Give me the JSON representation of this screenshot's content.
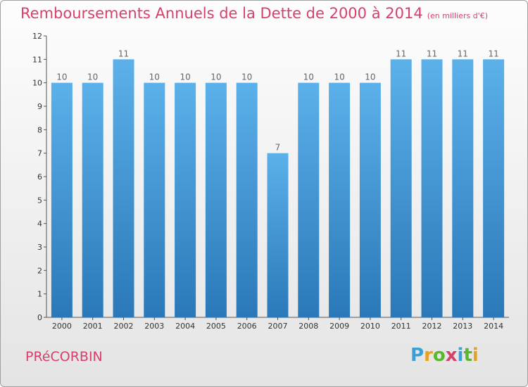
{
  "title": "Remboursements Annuels de la Dette de 2000 à 2014",
  "unit": "(en milliers d'€)",
  "town": "PRéCORBIN",
  "logo": {
    "text": "Proxiti",
    "colors": [
      "#3aa0d8",
      "#e8a21e",
      "#5ab82e",
      "#d8406c",
      "#3aa0d8",
      "#5ab82e",
      "#e8a21e"
    ]
  },
  "colors": {
    "bar_light": "#5cb1ea",
    "bar_dark": "#2a78b8",
    "title": "#d8406c"
  },
  "chart_data": {
    "type": "bar",
    "title": "Remboursements Annuels de la Dette de 2000 à 2014",
    "ylabel": "",
    "xlabel": "",
    "categories": [
      "2000",
      "2001",
      "2002",
      "2003",
      "2004",
      "2005",
      "2006",
      "2007",
      "2008",
      "2009",
      "2010",
      "2011",
      "2012",
      "2013",
      "2014"
    ],
    "values": [
      10,
      10,
      11,
      10,
      10,
      10,
      10,
      7,
      10,
      10,
      10,
      11,
      11,
      11,
      11
    ],
    "ylim": [
      0,
      12
    ],
    "yticks": [
      0,
      1,
      2,
      3,
      4,
      5,
      6,
      7,
      8,
      9,
      10,
      11,
      12
    ],
    "grid": false
  }
}
